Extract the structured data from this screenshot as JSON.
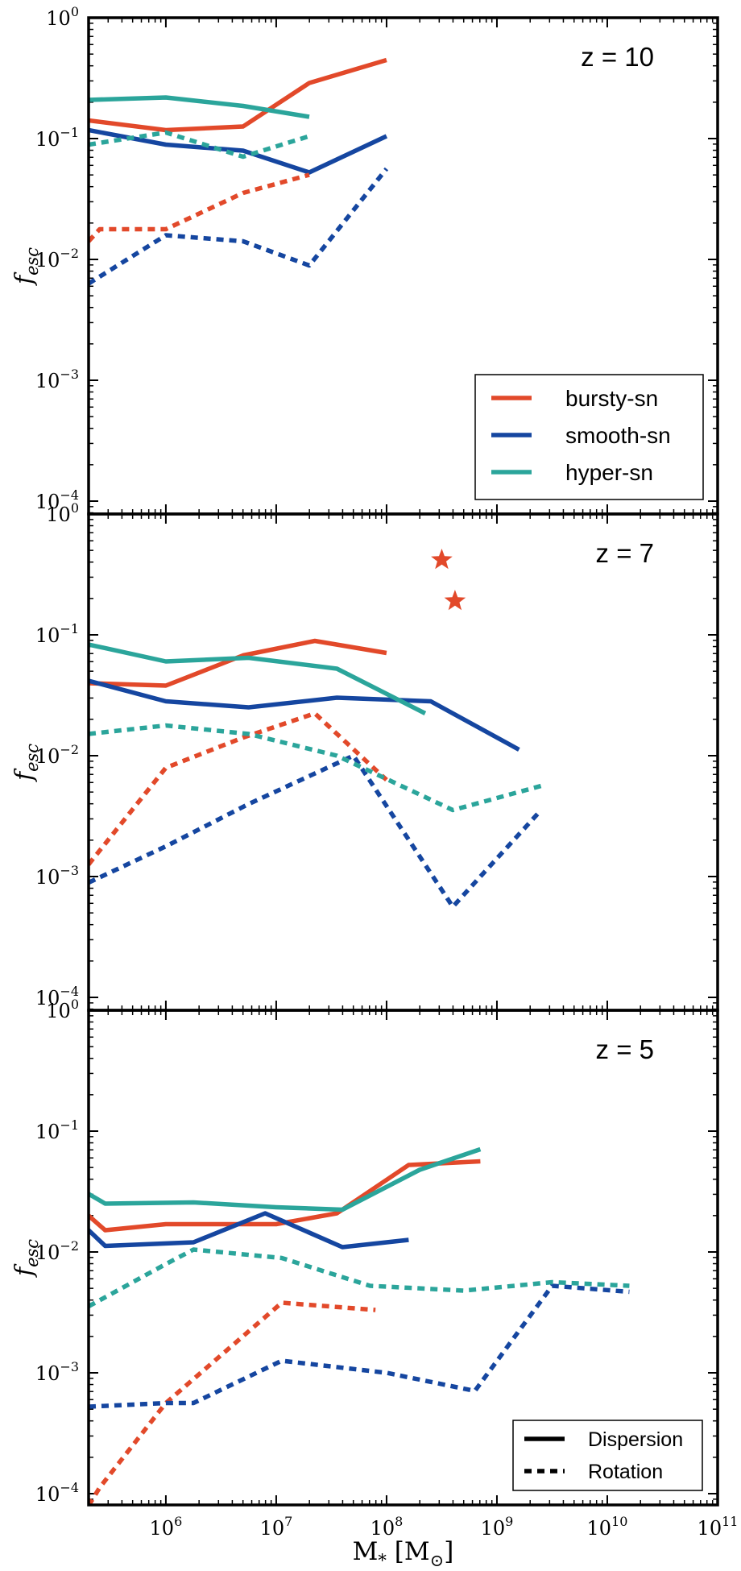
{
  "chart_data": {
    "type": "line",
    "xlabel": "M",
    "xlabel_sub": "*",
    "xlabel_unit": "[M",
    "xlabel_unit_sub": "⊙",
    "xlabel_unit_close": "]",
    "xscale": "log",
    "xlim_log10": [
      5.3,
      11.0
    ],
    "x_ticks": [
      {
        "base": "10",
        "exp": "6",
        "log10": 6
      },
      {
        "base": "10",
        "exp": "7",
        "log10": 7
      },
      {
        "base": "10",
        "exp": "8",
        "log10": 8
      },
      {
        "base": "10",
        "exp": "9",
        "log10": 9
      },
      {
        "base": "10",
        "exp": "10",
        "log10": 10
      },
      {
        "base": "10",
        "exp": "11",
        "log10": 11
      }
    ],
    "ylabel": "f",
    "ylabel_sub": "esc",
    "yscale": "log",
    "ylim_log10": [
      -4.1,
      0
    ],
    "y_ticks": [
      {
        "base": "10",
        "exp": "0",
        "log10": 0
      },
      {
        "base": "10",
        "exp": "−1",
        "log10": -1
      },
      {
        "base": "10",
        "exp": "−2",
        "log10": -2
      },
      {
        "base": "10",
        "exp": "−3",
        "log10": -3
      },
      {
        "base": "10",
        "exp": "−4",
        "log10": -4
      }
    ],
    "colors": {
      "bursty": "#e2492a",
      "smooth": "#1546a0",
      "hyper": "#2ba59b"
    },
    "legend_models": [
      {
        "label": "bursty-sn",
        "color": "#e2492a"
      },
      {
        "label": "smooth-sn",
        "color": "#1546a0"
      },
      {
        "label": "hyper-sn",
        "color": "#2ba59b"
      }
    ],
    "legend_styles": [
      {
        "label": "Dispersion",
        "style": "solid"
      },
      {
        "label": "Rotation",
        "style": "dashed"
      }
    ],
    "panels": [
      {
        "label": "z = 10",
        "series": [
          {
            "name": "bursty-sn Dispersion",
            "color": "#e2492a",
            "style": "solid",
            "log10_x": [
              5.3,
              6.0,
              6.7,
              7.3,
              8.0
            ],
            "log10_y": [
              -0.85,
              -0.93,
              -0.9,
              -0.54,
              -0.35
            ]
          },
          {
            "name": "smooth-sn Dispersion",
            "color": "#1546a0",
            "style": "solid",
            "log10_x": [
              5.3,
              6.0,
              6.7,
              7.3,
              8.0
            ],
            "log10_y": [
              -0.93,
              -1.05,
              -1.1,
              -1.28,
              -0.98
            ]
          },
          {
            "name": "hyper-sn Dispersion",
            "color": "#2ba59b",
            "style": "solid",
            "log10_x": [
              5.3,
              6.0,
              6.7,
              7.3
            ],
            "log10_y": [
              -0.68,
              -0.66,
              -0.73,
              -0.82
            ]
          },
          {
            "name": "bursty-sn Rotation",
            "color": "#e2492a",
            "style": "dashed",
            "log10_x": [
              5.3,
              5.4,
              6.0,
              6.7,
              7.3
            ],
            "log10_y": [
              -1.85,
              -1.75,
              -1.75,
              -1.45,
              -1.3
            ]
          },
          {
            "name": "smooth-sn Rotation",
            "color": "#1546a0",
            "style": "dashed",
            "log10_x": [
              5.3,
              6.0,
              6.7,
              7.3,
              8.0
            ],
            "log10_y": [
              -2.2,
              -1.8,
              -1.85,
              -2.05,
              -1.25
            ]
          },
          {
            "name": "hyper-sn Rotation",
            "color": "#2ba59b",
            "style": "dashed",
            "log10_x": [
              5.3,
              6.0,
              6.7,
              7.3
            ],
            "log10_y": [
              -1.05,
              -0.95,
              -1.15,
              -0.98
            ]
          }
        ],
        "stars": []
      },
      {
        "label": "z = 7",
        "series": [
          {
            "name": "bursty-sn Dispersion",
            "color": "#e2492a",
            "style": "solid",
            "log10_x": [
              5.3,
              6.0,
              6.7,
              7.35,
              8.0
            ],
            "log10_y": [
              -1.4,
              -1.42,
              -1.17,
              -1.05,
              -1.15
            ]
          },
          {
            "name": "smooth-sn Dispersion",
            "color": "#1546a0",
            "style": "solid",
            "log10_x": [
              5.3,
              6.0,
              6.75,
              7.55,
              8.4,
              9.2
            ],
            "log10_y": [
              -1.38,
              -1.55,
              -1.6,
              -1.52,
              -1.55,
              -1.95
            ]
          },
          {
            "name": "hyper-sn Dispersion",
            "color": "#2ba59b",
            "style": "solid",
            "log10_x": [
              5.3,
              6.0,
              6.75,
              7.55,
              8.35
            ],
            "log10_y": [
              -1.08,
              -1.22,
              -1.19,
              -1.28,
              -1.65
            ]
          },
          {
            "name": "bursty-sn Rotation",
            "color": "#e2492a",
            "style": "dashed",
            "log10_x": [
              5.3,
              6.0,
              6.7,
              7.35,
              8.0
            ],
            "log10_y": [
              -2.9,
              -2.1,
              -1.85,
              -1.65,
              -2.2
            ]
          },
          {
            "name": "smooth-sn Rotation",
            "color": "#1546a0",
            "style": "dashed",
            "log10_x": [
              5.3,
              6.0,
              6.75,
              7.7,
              8.6,
              9.4
            ],
            "log10_y": [
              -3.05,
              -2.75,
              -2.4,
              -2.0,
              -3.25,
              -2.45
            ]
          },
          {
            "name": "hyper-sn Rotation",
            "color": "#2ba59b",
            "style": "dashed",
            "log10_x": [
              5.3,
              6.0,
              6.75,
              7.55,
              8.6,
              9.4
            ],
            "log10_y": [
              -1.82,
              -1.75,
              -1.82,
              -2.0,
              -2.45,
              -2.25
            ]
          }
        ],
        "stars": [
          {
            "name": "bursty-sn star",
            "color": "#e2492a",
            "log10_x": 8.5,
            "log10_y": -0.38
          },
          {
            "name": "bursty-sn star",
            "color": "#e2492a",
            "log10_x": 8.62,
            "log10_y": -0.72
          }
        ]
      },
      {
        "label": "z = 5",
        "series": [
          {
            "name": "bursty-sn Dispersion",
            "color": "#e2492a",
            "style": "solid",
            "log10_x": [
              5.3,
              5.45,
              6.0,
              6.5,
              7.0,
              7.55,
              8.2,
              8.85
            ],
            "log10_y": [
              -1.7,
              -1.82,
              -1.77,
              -1.77,
              -1.77,
              -1.68,
              -1.28,
              -1.25
            ]
          },
          {
            "name": "smooth-sn Dispersion",
            "color": "#1546a0",
            "style": "solid",
            "log10_x": [
              5.3,
              5.45,
              6.25,
              6.9,
              7.6,
              8.2
            ],
            "log10_y": [
              -1.82,
              -1.95,
              -1.92,
              -1.68,
              -1.96,
              -1.9
            ]
          },
          {
            "name": "hyper-sn Dispersion",
            "color": "#2ba59b",
            "style": "solid",
            "log10_x": [
              5.3,
              5.45,
              6.25,
              7.0,
              7.6,
              8.3,
              8.85
            ],
            "log10_y": [
              -1.52,
              -1.6,
              -1.59,
              -1.63,
              -1.65,
              -1.32,
              -1.15
            ]
          },
          {
            "name": "bursty-sn Rotation",
            "color": "#e2492a",
            "style": "dashed",
            "log10_x": [
              5.3,
              5.4,
              6.0,
              7.05,
              7.9
            ],
            "log10_y": [
              -4.1,
              -3.95,
              -3.25,
              -2.42,
              -2.48
            ]
          },
          {
            "name": "smooth-sn Rotation",
            "color": "#1546a0",
            "style": "dashed",
            "log10_x": [
              5.3,
              6.0,
              6.25,
              7.05,
              8.0,
              8.8,
              9.5,
              10.2
            ],
            "log10_y": [
              -3.28,
              -3.25,
              -3.25,
              -2.9,
              -3.0,
              -3.15,
              -2.28,
              -2.33
            ]
          },
          {
            "name": "hyper-sn Rotation",
            "color": "#2ba59b",
            "style": "dashed",
            "log10_x": [
              5.3,
              6.0,
              6.25,
              7.05,
              7.85,
              8.7,
              9.5,
              10.2
            ],
            "log10_y": [
              -2.45,
              -2.1,
              -1.98,
              -2.05,
              -2.28,
              -2.32,
              -2.25,
              -2.28
            ]
          }
        ],
        "stars": []
      }
    ]
  }
}
